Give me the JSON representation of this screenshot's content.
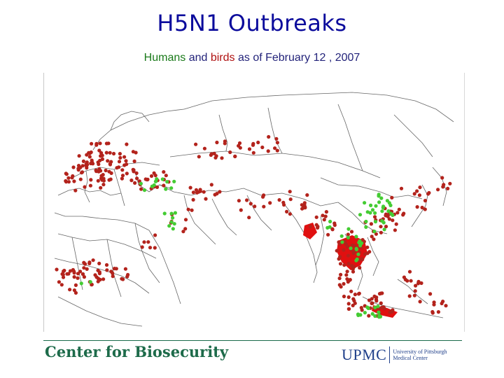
{
  "title": "H5N1 Outbreaks",
  "subtitle": {
    "part1": "Humans",
    "part2": " and ",
    "part3": "birds",
    "part4": " as of February 12 , 2007"
  },
  "footer": {
    "left": "Center for Biosecurity",
    "right_logo": "UPMC",
    "right_line1": "University of Pittsburgh",
    "right_line2": "Medical Center"
  },
  "colors": {
    "title": "#0b0b9c",
    "humans": "#1a7a1a",
    "birds": "#b01212",
    "human_marker": "#44cc33",
    "bird_marker": "#b3231c",
    "outbreak_area": "#e01010",
    "footer_green": "#1d6b4a",
    "upmc_blue": "#1f3f8a"
  },
  "map": {
    "region": "Europe, Africa and Asia",
    "legend_categories": [
      "humans",
      "birds"
    ]
  }
}
